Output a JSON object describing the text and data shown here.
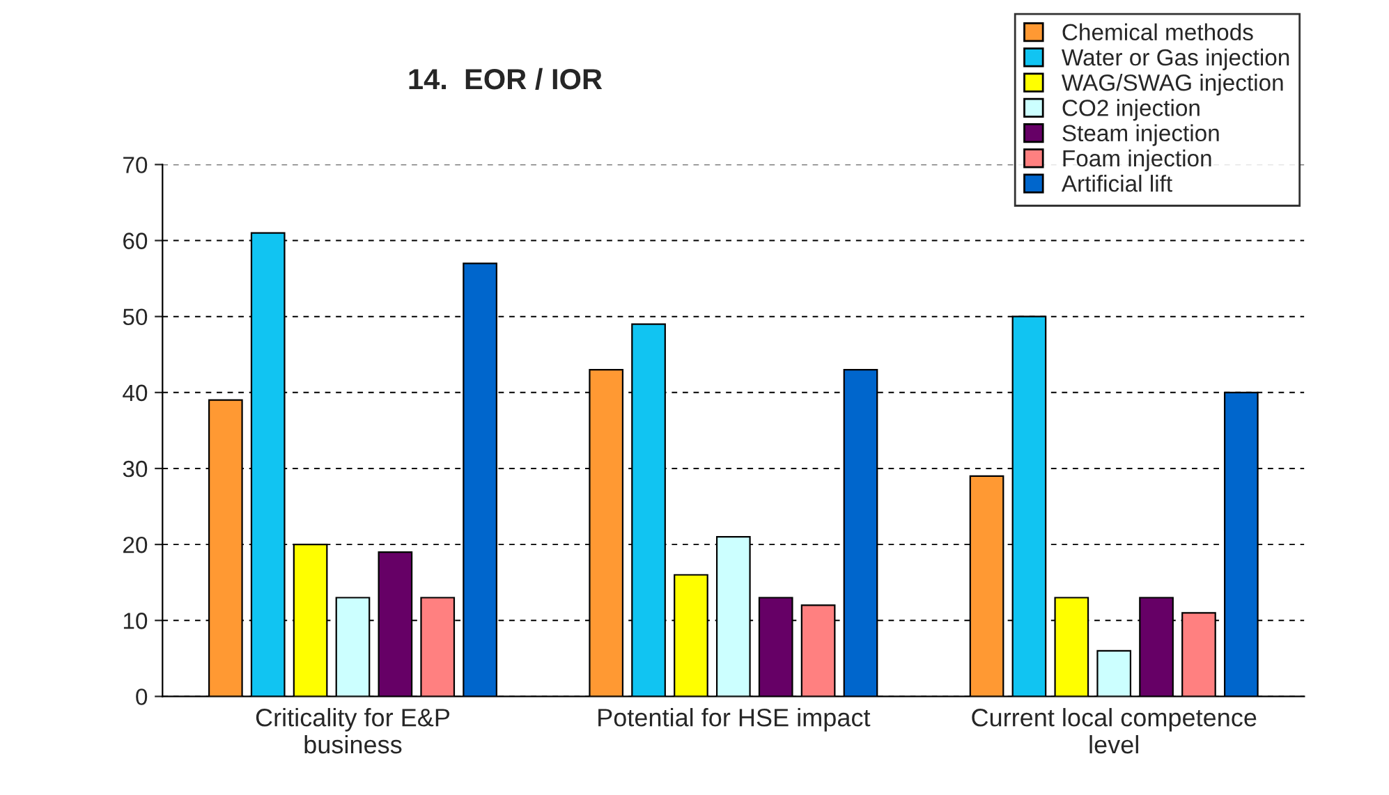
{
  "chart_data": {
    "type": "bar",
    "title": "14.  EOR / IOR",
    "categories": [
      "Criticality for E&P business",
      "Potential for HSE impact",
      "Current local competence level"
    ],
    "series": [
      {
        "name": "Chemical methods",
        "color": "#ff9933",
        "values": [
          39,
          43,
          29
        ]
      },
      {
        "name": "Water or Gas injection",
        "color": "#11c4f2",
        "values": [
          61,
          49,
          50
        ]
      },
      {
        "name": "WAG/SWAG injection",
        "color": "#ffff00",
        "values": [
          20,
          16,
          13
        ]
      },
      {
        "name": "CO2 injection",
        "color": "#ccffff",
        "values": [
          13,
          21,
          6
        ]
      },
      {
        "name": "Steam injection",
        "color": "#660066",
        "values": [
          19,
          13,
          13
        ]
      },
      {
        "name": "Foam injection",
        "color": "#ff8080",
        "values": [
          13,
          12,
          11
        ]
      },
      {
        "name": "Artificial lift",
        "color": "#0066cc",
        "values": [
          57,
          43,
          40
        ]
      }
    ],
    "ylim": [
      0,
      70
    ],
    "yticks": [
      0,
      10,
      20,
      30,
      40,
      50,
      60,
      70
    ],
    "grid": "y",
    "legend": "top right"
  }
}
